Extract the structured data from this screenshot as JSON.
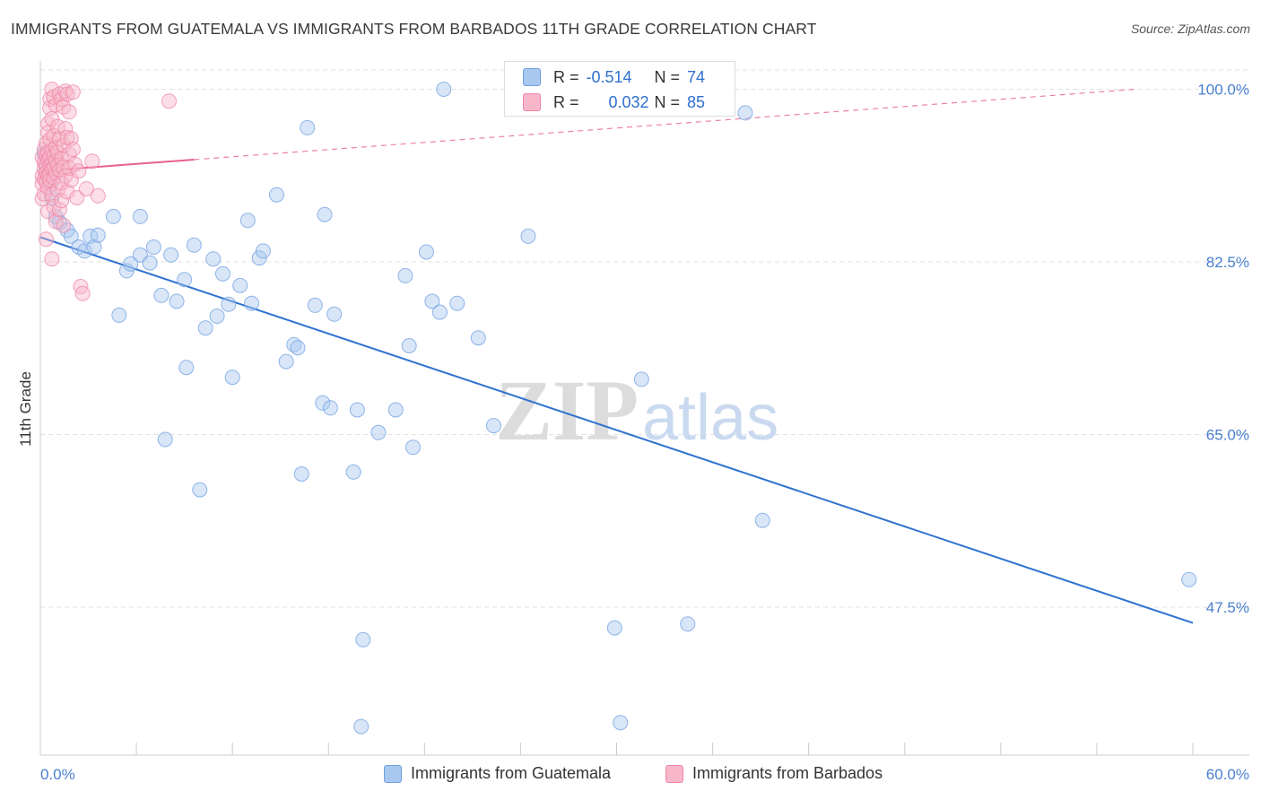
{
  "title": "IMMIGRANTS FROM GUATEMALA VS IMMIGRANTS FROM BARBADOS 11TH GRADE CORRELATION CHART",
  "source": "Source: ZipAtlas.com",
  "watermark_zip": "ZIP",
  "watermark_atlas": "atlas",
  "stats": {
    "r_label": "R =",
    "n_label": "N =",
    "guatemala": {
      "r": "-0.514",
      "n": "74"
    },
    "barbados": {
      "r": "0.032",
      "n": "85"
    }
  },
  "legend": {
    "guatemala": "Immigrants from Guatemala",
    "barbados": "Immigrants from Barbados"
  },
  "colors": {
    "guatemala_fill": "#a9c8f0",
    "guatemala_stroke": "#6f9fe0",
    "guatemala_line": "#2f72d0",
    "barbados_fill": "#f7b6ca",
    "barbados_stroke": "#ef86a6",
    "barbados_line": "#e8628c",
    "tick_label": "#4a7fcf",
    "grid": "#e2e2e2"
  },
  "chart_data": {
    "type": "scatter",
    "title": "IMMIGRANTS FROM GUATEMALA VS IMMIGRANTS FROM BARBADOS 11TH GRADE CORRELATION CHART",
    "xlabel": "",
    "ylabel": "11th Grade",
    "xlim": [
      0,
      60
    ],
    "ylim": [
      32.5,
      102.5
    ],
    "x_tick_labels": [
      "0.0%",
      "60.0%"
    ],
    "y_ticks": [
      47.5,
      65.0,
      82.5,
      100.0
    ],
    "y_tick_labels": [
      "47.5%",
      "65.0%",
      "82.5%",
      "100.0%"
    ],
    "grid": true,
    "legend_position": "bottom",
    "series": [
      {
        "name": "Immigrants from Guatemala",
        "trend": {
          "x": [
            0.0,
            60.0
          ],
          "y": [
            85.0,
            45.9
          ],
          "dashed_from": null
        },
        "points": [
          [
            0.2,
            93.5
          ],
          [
            0.3,
            91.8
          ],
          [
            0.5,
            90.4
          ],
          [
            0.6,
            89.0
          ],
          [
            0.8,
            87.1
          ],
          [
            1.0,
            86.5
          ],
          [
            1.4,
            85.7
          ],
          [
            1.6,
            85.1
          ],
          [
            2.0,
            84.0
          ],
          [
            2.3,
            83.6
          ],
          [
            2.6,
            85.1
          ],
          [
            2.8,
            84.0
          ],
          [
            3.0,
            85.2
          ],
          [
            3.8,
            87.1
          ],
          [
            4.1,
            77.1
          ],
          [
            4.5,
            81.6
          ],
          [
            4.7,
            82.3
          ],
          [
            5.2,
            83.2
          ],
          [
            5.2,
            87.1
          ],
          [
            5.7,
            82.4
          ],
          [
            5.9,
            84.0
          ],
          [
            6.3,
            79.1
          ],
          [
            6.5,
            64.5
          ],
          [
            6.8,
            83.2
          ],
          [
            7.1,
            78.5
          ],
          [
            7.5,
            80.7
          ],
          [
            7.6,
            71.8
          ],
          [
            8.0,
            84.2
          ],
          [
            8.3,
            59.4
          ],
          [
            8.6,
            75.8
          ],
          [
            9.0,
            82.8
          ],
          [
            9.2,
            77.0
          ],
          [
            9.5,
            81.3
          ],
          [
            9.8,
            78.2
          ],
          [
            10.0,
            70.8
          ],
          [
            10.4,
            80.1
          ],
          [
            10.8,
            86.7
          ],
          [
            11.0,
            78.3
          ],
          [
            11.4,
            82.9
          ],
          [
            11.6,
            83.6
          ],
          [
            12.3,
            89.3
          ],
          [
            12.8,
            72.4
          ],
          [
            13.2,
            74.1
          ],
          [
            13.4,
            73.8
          ],
          [
            13.6,
            61.0
          ],
          [
            13.9,
            96.1
          ],
          [
            14.3,
            78.1
          ],
          [
            14.7,
            68.2
          ],
          [
            14.8,
            87.3
          ],
          [
            15.1,
            67.7
          ],
          [
            15.3,
            77.2
          ],
          [
            16.3,
            61.2
          ],
          [
            16.5,
            67.5
          ],
          [
            16.7,
            35.4
          ],
          [
            16.8,
            44.2
          ],
          [
            17.6,
            65.2
          ],
          [
            18.5,
            67.5
          ],
          [
            19.0,
            81.1
          ],
          [
            19.2,
            74.0
          ],
          [
            19.4,
            63.7
          ],
          [
            20.1,
            83.5
          ],
          [
            20.4,
            78.5
          ],
          [
            20.8,
            77.4
          ],
          [
            21.0,
            100.0
          ],
          [
            21.7,
            78.3
          ],
          [
            22.8,
            74.8
          ],
          [
            23.6,
            65.9
          ],
          [
            25.4,
            85.1
          ],
          [
            29.9,
            45.4
          ],
          [
            30.2,
            35.8
          ],
          [
            31.3,
            70.6
          ],
          [
            33.7,
            45.8
          ],
          [
            36.7,
            97.6
          ],
          [
            37.6,
            56.3
          ],
          [
            59.8,
            50.3
          ]
        ]
      },
      {
        "name": "Immigrants from Barbados",
        "trend": {
          "x": [
            0.0,
            57.0
          ],
          "y": [
            91.7,
            100.0
          ],
          "dashed_from": 8.0
        },
        "points": [
          [
            0.1,
            93.1
          ],
          [
            0.1,
            91.2
          ],
          [
            0.1,
            90.4
          ],
          [
            0.1,
            88.9
          ],
          [
            0.2,
            93.9
          ],
          [
            0.2,
            92.6
          ],
          [
            0.2,
            91.9
          ],
          [
            0.2,
            90.9
          ],
          [
            0.2,
            89.4
          ],
          [
            0.3,
            94.5
          ],
          [
            0.3,
            93.3
          ],
          [
            0.3,
            92.4
          ],
          [
            0.3,
            91.5
          ],
          [
            0.3,
            90.6
          ],
          [
            0.3,
            84.8
          ],
          [
            0.4,
            96.5
          ],
          [
            0.4,
            95.6
          ],
          [
            0.4,
            93.6
          ],
          [
            0.4,
            92.8
          ],
          [
            0.4,
            91.2
          ],
          [
            0.4,
            90.0
          ],
          [
            0.4,
            87.6
          ],
          [
            0.5,
            99.0
          ],
          [
            0.5,
            98.1
          ],
          [
            0.5,
            94.9
          ],
          [
            0.5,
            93.1
          ],
          [
            0.5,
            92.2
          ],
          [
            0.5,
            91.4
          ],
          [
            0.5,
            90.8
          ],
          [
            0.6,
            100.0
          ],
          [
            0.6,
            97.0
          ],
          [
            0.6,
            93.8
          ],
          [
            0.6,
            92.5
          ],
          [
            0.6,
            91.9
          ],
          [
            0.6,
            89.3
          ],
          [
            0.6,
            82.8
          ],
          [
            0.7,
            99.2
          ],
          [
            0.7,
            95.3
          ],
          [
            0.7,
            93.2
          ],
          [
            0.7,
            92.0
          ],
          [
            0.7,
            91.0
          ],
          [
            0.7,
            88.1
          ],
          [
            0.8,
            98.4
          ],
          [
            0.8,
            94.1
          ],
          [
            0.8,
            92.7
          ],
          [
            0.8,
            91.5
          ],
          [
            0.8,
            86.6
          ],
          [
            0.9,
            96.2
          ],
          [
            0.9,
            93.6
          ],
          [
            0.9,
            92.3
          ],
          [
            0.9,
            89.8
          ],
          [
            1.0,
            99.5
          ],
          [
            1.0,
            95.0
          ],
          [
            1.0,
            91.8
          ],
          [
            1.0,
            87.8
          ],
          [
            1.1,
            99.0
          ],
          [
            1.1,
            93.0
          ],
          [
            1.1,
            90.5
          ],
          [
            1.1,
            88.7
          ],
          [
            1.2,
            98.2
          ],
          [
            1.2,
            94.3
          ],
          [
            1.2,
            92.1
          ],
          [
            1.2,
            86.2
          ],
          [
            1.3,
            99.8
          ],
          [
            1.3,
            96.0
          ],
          [
            1.3,
            91.2
          ],
          [
            1.4,
            99.5
          ],
          [
            1.4,
            95.1
          ],
          [
            1.4,
            89.6
          ],
          [
            1.5,
            97.7
          ],
          [
            1.5,
            93.4
          ],
          [
            1.5,
            92.0
          ],
          [
            1.6,
            95.0
          ],
          [
            1.6,
            90.8
          ],
          [
            1.7,
            99.7
          ],
          [
            1.7,
            93.9
          ],
          [
            1.8,
            92.4
          ],
          [
            1.9,
            89.0
          ],
          [
            2.0,
            91.7
          ],
          [
            2.1,
            80.0
          ],
          [
            2.2,
            79.3
          ],
          [
            2.4,
            89.9
          ],
          [
            2.7,
            92.7
          ],
          [
            3.0,
            89.2
          ],
          [
            6.7,
            98.8
          ]
        ]
      }
    ]
  }
}
